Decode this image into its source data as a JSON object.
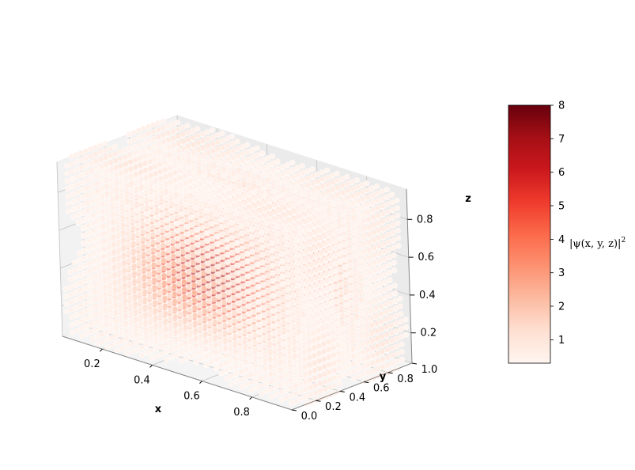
{
  "chart_data": {
    "type": "scatter",
    "subtype": "3d-voxel-scatter",
    "title": "",
    "xlabel": "x",
    "ylabel": "y",
    "zlabel": "z",
    "x_ticks": [
      "0.2",
      "0.4",
      "0.6",
      "0.8"
    ],
    "y_ticks": [
      "0.0",
      "0.2",
      "0.4",
      "0.6",
      "0.8",
      "1.0"
    ],
    "z_ticks": [
      "0.2",
      "0.4",
      "0.6",
      "0.8"
    ],
    "xlim": [
      0.04,
      0.96
    ],
    "ylim": [
      0.0,
      1.0
    ],
    "zlim": [
      0.04,
      0.96
    ],
    "grid": true,
    "colormap": "Reds",
    "colorbar": {
      "label": "|ψ(x, y, z)|²",
      "label_main": "|ψ(x, y, z)|",
      "label_sup": "2",
      "ticks": [
        "1",
        "2",
        "3",
        "4",
        "5",
        "6",
        "7",
        "8"
      ],
      "range": [
        0.3,
        8.0
      ],
      "colors": [
        "#fff5f0",
        "#fee0d2",
        "#fcbba1",
        "#fc9272",
        "#fb6a4a",
        "#ef3b2c",
        "#cb181d",
        "#a50f15",
        "#67000d"
      ]
    },
    "point_grid": {
      "x": [
        0.04,
        0.96,
        0.04
      ],
      "y": [
        0.0,
        1.0,
        0.04
      ],
      "z": [
        0.04,
        0.96,
        0.04
      ]
    },
    "blobs": [
      {
        "center": [
          0.5,
          0.25,
          0.5
        ],
        "peak": 8
      },
      {
        "center": [
          0.5,
          0.75,
          0.5
        ],
        "peak": 8
      }
    ],
    "threshold": 0.3
  }
}
